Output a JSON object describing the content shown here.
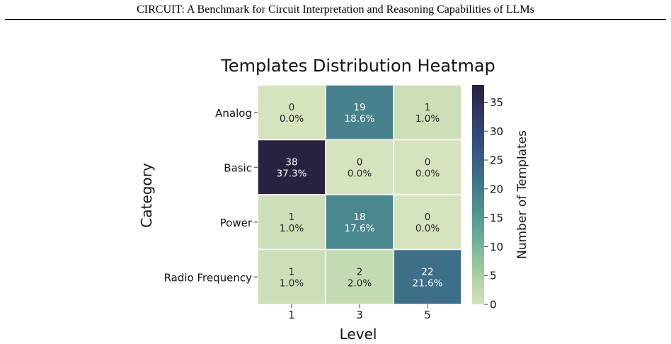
{
  "page_header": {
    "running_title": "CIRCUIT: A Benchmark for Circuit Interpretation and Reasoning Capabilities of LLMs"
  },
  "chart_data": {
    "type": "heatmap",
    "title": "Templates Distribution Heatmap",
    "xlabel": "Level",
    "ylabel": "Category",
    "x_categories": [
      "1",
      "3",
      "5"
    ],
    "y_categories": [
      "Analog",
      "Basic",
      "Power",
      "Radio Frequency"
    ],
    "values": [
      [
        0,
        19,
        1
      ],
      [
        38,
        0,
        0
      ],
      [
        1,
        18,
        0
      ],
      [
        1,
        2,
        22
      ]
    ],
    "percent_labels": [
      [
        "0.0%",
        "18.6%",
        "1.0%"
      ],
      [
        "37.3%",
        "0.0%",
        "0.0%"
      ],
      [
        "1.0%",
        "17.6%",
        "0.0%"
      ],
      [
        "1.0%",
        "2.0%",
        "21.6%"
      ]
    ],
    "colorbar": {
      "label": "Number of Templates",
      "vmin": 0,
      "vmax": 38,
      "ticks": [
        "0",
        "5",
        "10",
        "15",
        "20",
        "25",
        "30",
        "35"
      ],
      "colors": [
        "#d6e3bf",
        "#a3ce9e",
        "#70b19b",
        "#4f9191",
        "#3e7189",
        "#355280",
        "#2f3a68",
        "#29213f"
      ]
    },
    "grid": false,
    "legend": "right"
  }
}
